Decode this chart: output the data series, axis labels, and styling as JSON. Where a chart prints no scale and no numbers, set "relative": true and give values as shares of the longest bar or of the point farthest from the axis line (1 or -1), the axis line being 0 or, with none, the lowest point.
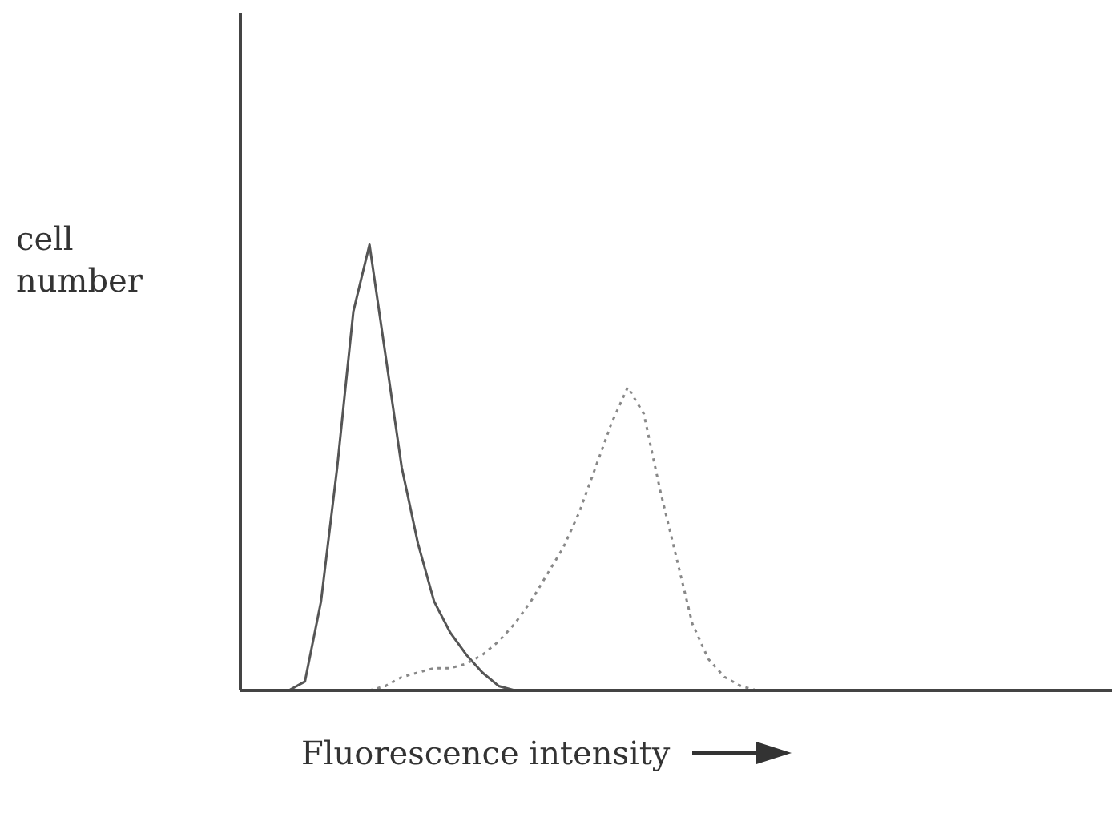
{
  "chart_data": {
    "type": "line",
    "relative": true,
    "xlabel": "Fluorescence intensity",
    "ylabel": "cell\nnumber",
    "categories": [
      null,
      null,
      null,
      null,
      null,
      null,
      null,
      null,
      null,
      null,
      null,
      null,
      null,
      null,
      null,
      null,
      null,
      null,
      null,
      null,
      null,
      null,
      null,
      null,
      null,
      null,
      null,
      null,
      null,
      null,
      null,
      null,
      null,
      null,
      null,
      null,
      null,
      null,
      null,
      null,
      null,
      null,
      null,
      null,
      null,
      null,
      null,
      null,
      null,
      null,
      null,
      null,
      null,
      null,
      null
    ],
    "series": [
      {
        "color": "#555555",
        "line_style": "solid",
        "values": [
          null,
          null,
          null,
          0,
          0.02,
          0.2,
          0.5,
          0.85,
          1,
          0.75,
          0.5,
          0.33,
          0.2,
          0.13,
          0.08,
          0.04,
          0.01,
          0,
          null,
          null,
          null,
          null,
          null,
          null,
          null,
          null,
          null,
          null,
          null,
          null,
          null,
          null,
          null,
          null,
          null,
          null,
          null,
          null,
          null,
          null,
          null,
          null,
          null,
          null,
          null,
          null,
          null,
          null,
          null,
          null,
          null,
          null,
          null,
          null,
          null
        ]
      },
      {
        "color": "#888888",
        "line_style": "dotted",
        "values": [
          null,
          null,
          null,
          null,
          null,
          null,
          null,
          null,
          0,
          0.01,
          0.03,
          0.04,
          0.05,
          0.05,
          0.06,
          0.08,
          0.11,
          0.15,
          0.2,
          0.26,
          0.32,
          0.4,
          0.5,
          0.6,
          0.68,
          0.62,
          0.45,
          0.3,
          0.15,
          0.07,
          0.03,
          0.01,
          0,
          null,
          null,
          null,
          null,
          null,
          null,
          null,
          null,
          null,
          null,
          null,
          null,
          null,
          null,
          null,
          null,
          null,
          null,
          null,
          null,
          null,
          null
        ]
      }
    ],
    "grid": false,
    "legend": false
  }
}
